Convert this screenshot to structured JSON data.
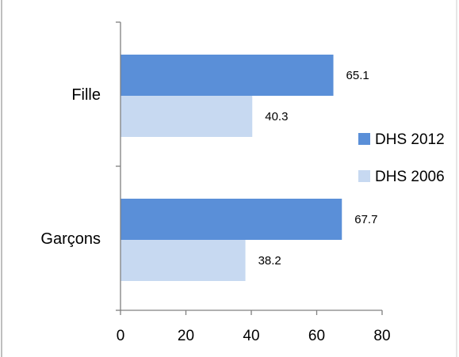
{
  "chart_data": {
    "type": "bar",
    "orientation": "horizontal",
    "categories": [
      "Fille",
      "Garçons"
    ],
    "series": [
      {
        "name": "DHS 2012",
        "values": [
          65.1,
          67.7
        ],
        "color": "#5a8fd8"
      },
      {
        "name": "DHS 2006",
        "values": [
          40.3,
          38.2
        ],
        "color": "#c7d9f1"
      }
    ],
    "xlim": [
      0,
      80
    ],
    "xticks": [
      "0",
      "20",
      "40",
      "60",
      "80"
    ],
    "data_labels": [
      [
        "65.1",
        "67.7"
      ],
      [
        "40.3",
        "38.2"
      ]
    ],
    "legend_position": "right",
    "grid": false
  }
}
